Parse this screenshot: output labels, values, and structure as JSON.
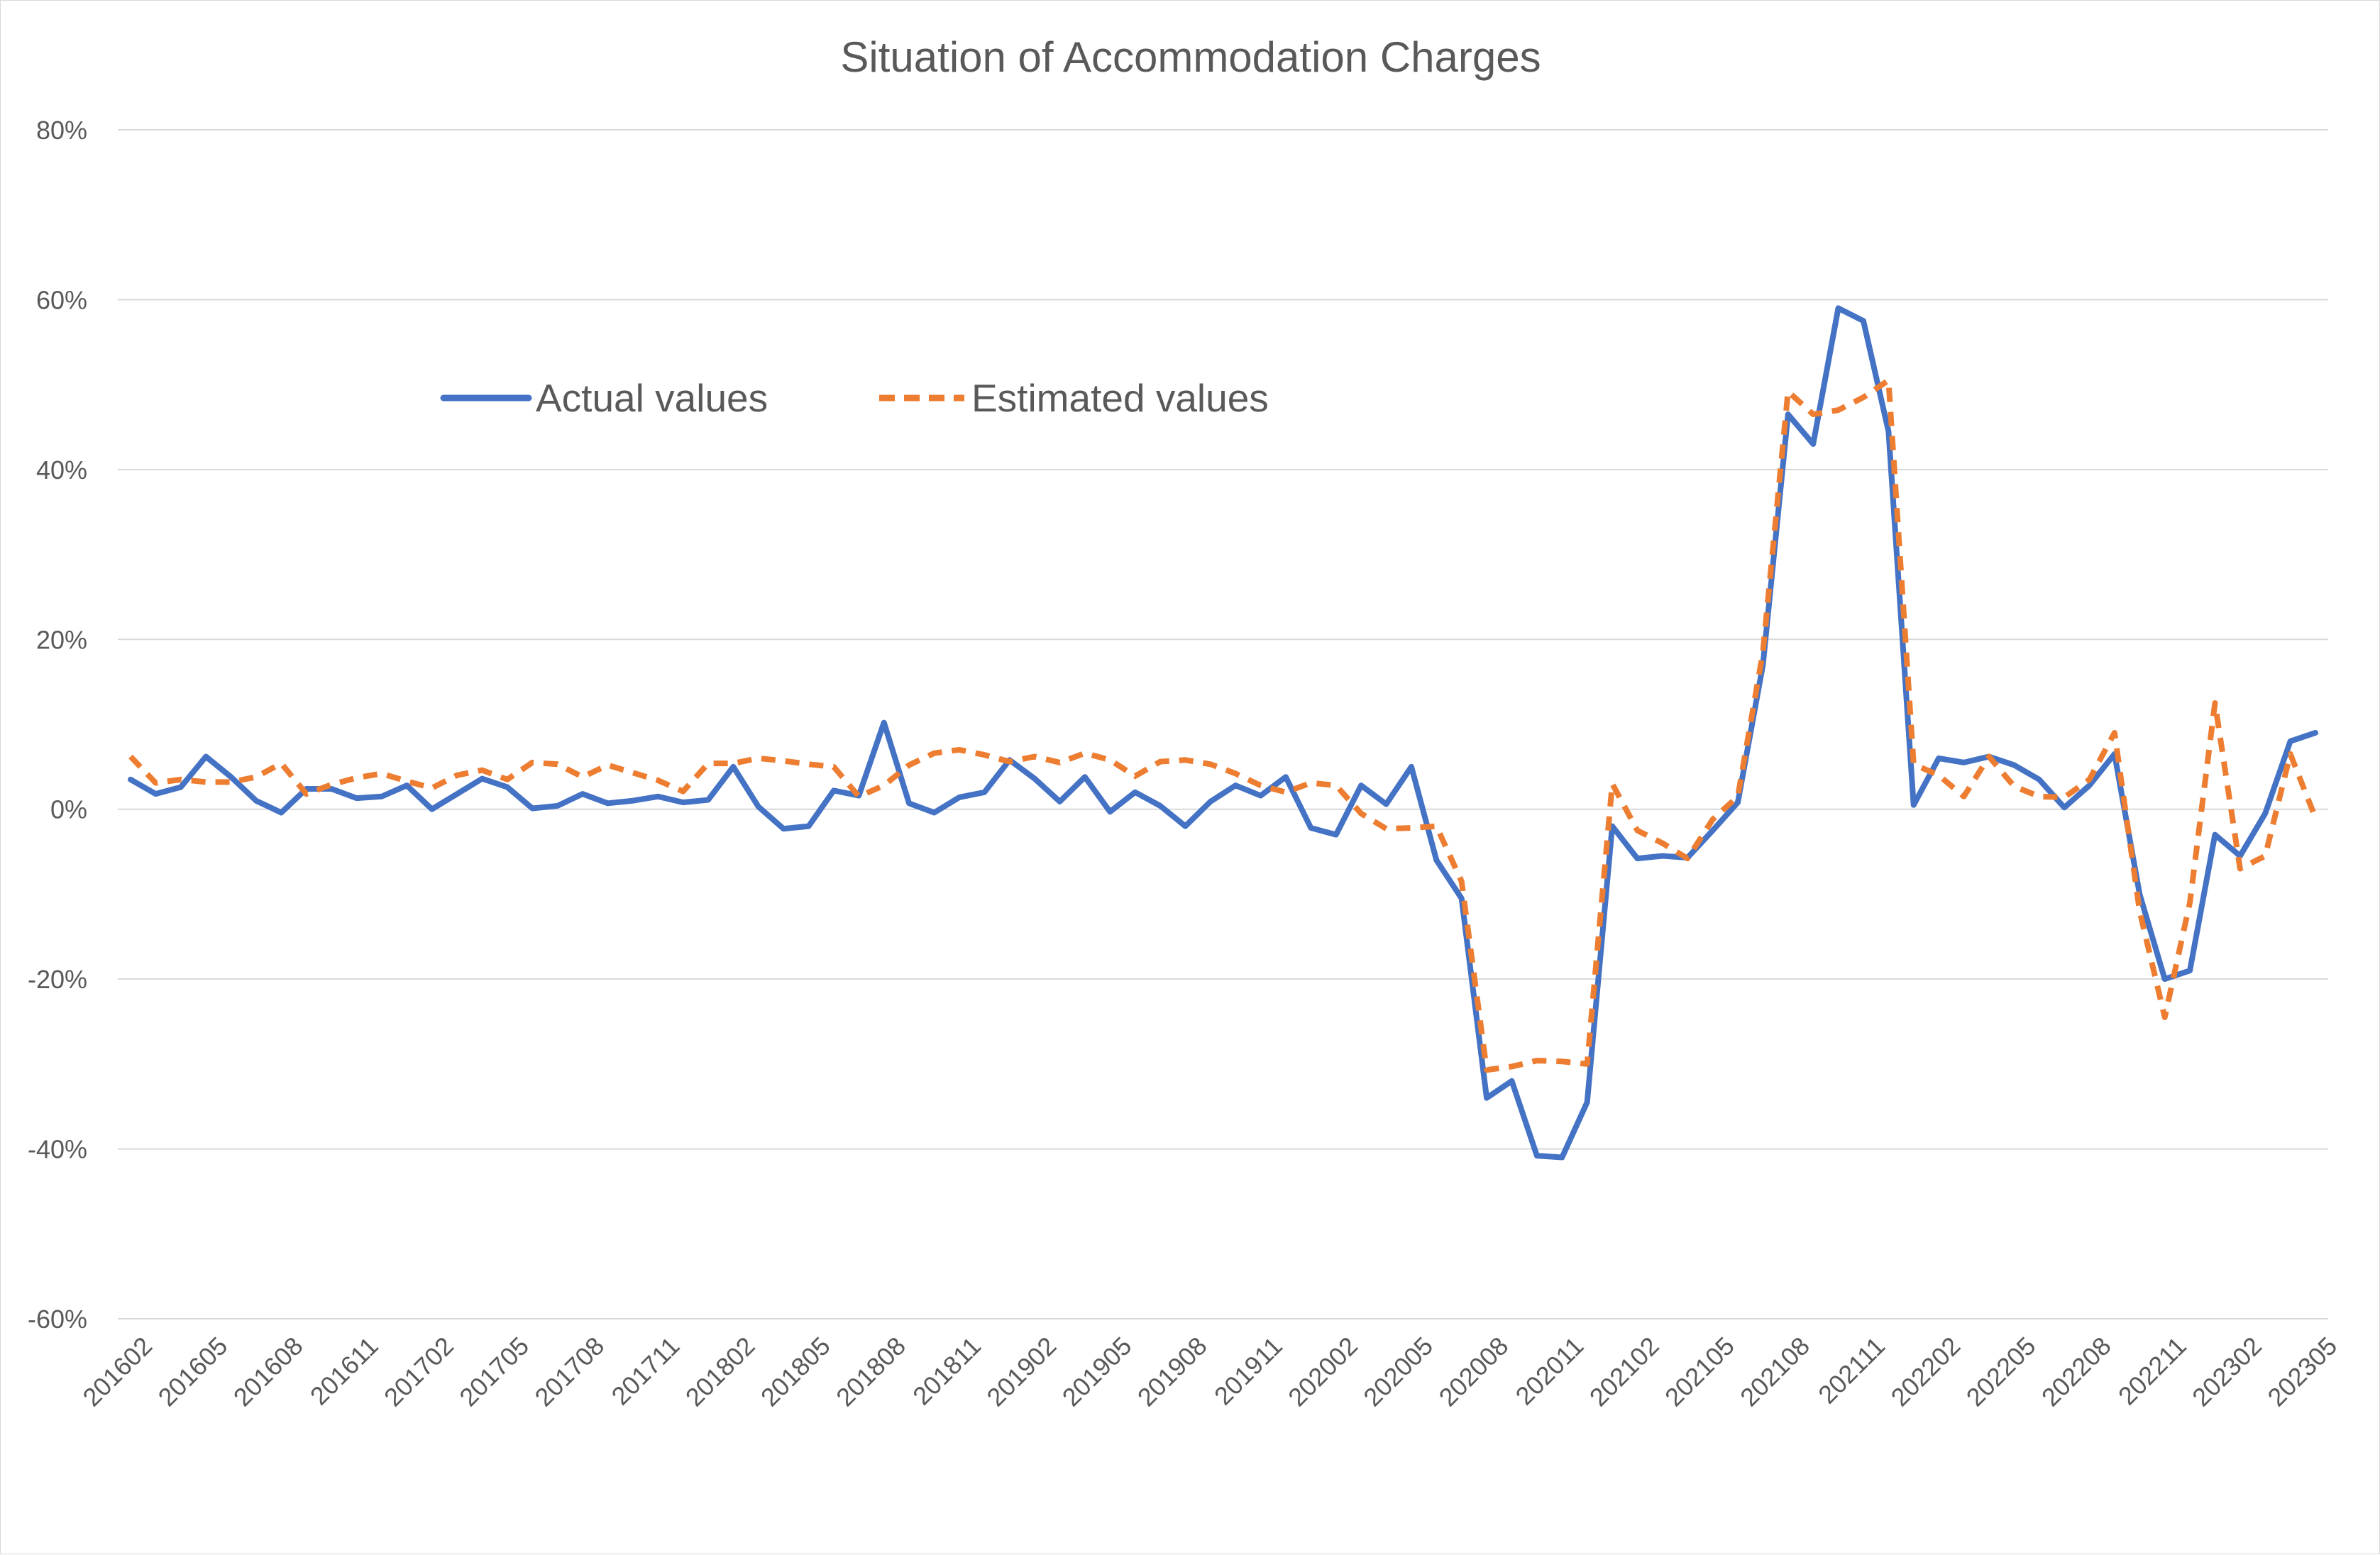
{
  "colors": {
    "actual": "#4472C4",
    "estimated": "#ED7D31",
    "grid": "#D9D9D9",
    "text": "#595959"
  },
  "chart_data": {
    "type": "line",
    "title": "Situation of Accommodation Charges",
    "xlabel": "",
    "ylabel": "",
    "ylim": [
      -60,
      80
    ],
    "y_unit": "%",
    "yticks": [
      -60,
      -40,
      -20,
      0,
      20,
      40,
      60,
      80
    ],
    "ytick_labels": [
      "-60%",
      "-40%",
      "-20%",
      "0%",
      "20%",
      "40%",
      "60%",
      "80%"
    ],
    "grid": true,
    "legend_position": "top-left",
    "x": [
      "201602",
      "201603",
      "201604",
      "201605",
      "201606",
      "201607",
      "201608",
      "201609",
      "201610",
      "201611",
      "201612",
      "201701",
      "201702",
      "201703",
      "201704",
      "201705",
      "201706",
      "201707",
      "201708",
      "201709",
      "201710",
      "201711",
      "201712",
      "201801",
      "201802",
      "201803",
      "201804",
      "201805",
      "201806",
      "201807",
      "201808",
      "201809",
      "201810",
      "201811",
      "201812",
      "201901",
      "201902",
      "201903",
      "201904",
      "201905",
      "201906",
      "201907",
      "201908",
      "201909",
      "201910",
      "201911",
      "201912",
      "202001",
      "202002",
      "202003",
      "202004",
      "202005",
      "202006",
      "202007",
      "202008",
      "202009",
      "202010",
      "202011",
      "202012",
      "202101",
      "202102",
      "202103",
      "202104",
      "202105",
      "202106",
      "202107",
      "202108",
      "202109",
      "202110",
      "202111",
      "202112",
      "202201",
      "202202",
      "202203",
      "202204",
      "202205",
      "202206",
      "202207",
      "202208",
      "202209",
      "202210",
      "202211",
      "202212",
      "202301",
      "202302",
      "202303",
      "202304",
      "202305"
    ],
    "x_tick_labels": [
      "201602",
      "201605",
      "201608",
      "201611",
      "201702",
      "201705",
      "201708",
      "201711",
      "201802",
      "201805",
      "201808",
      "201811",
      "201902",
      "201905",
      "201908",
      "201911",
      "202002",
      "202005",
      "202008",
      "202011",
      "202102",
      "202105",
      "202108",
      "202111",
      "202202",
      "202205",
      "202208",
      "202211",
      "202302",
      "202305"
    ],
    "series": [
      {
        "name": "Actual values",
        "style": "solid",
        "values": [
          3.5,
          1.8,
          2.6,
          6.2,
          3.8,
          1.0,
          -0.4,
          2.4,
          2.4,
          1.3,
          1.5,
          2.8,
          0.0,
          1.8,
          3.6,
          2.6,
          0.1,
          0.4,
          1.8,
          0.7,
          1.0,
          1.5,
          0.8,
          1.1,
          5.0,
          0.3,
          -2.3,
          -2.0,
          2.2,
          1.6,
          10.2,
          0.7,
          -0.4,
          1.4,
          2.0,
          5.8,
          3.6,
          0.9,
          3.8,
          -0.3,
          2.0,
          0.4,
          -2.0,
          0.9,
          2.8,
          1.6,
          3.8,
          -2.2,
          -3.0,
          2.8,
          0.6,
          5.0,
          -6.0,
          -10.5,
          -34.0,
          -32.0,
          -40.8,
          -41.0,
          -34.5,
          -2.0,
          -5.8,
          -5.5,
          -5.7,
          -2.5,
          0.8,
          17.0,
          46.5,
          43.0,
          59.0,
          57.5,
          44.5,
          0.5,
          6.0,
          5.5,
          6.2,
          5.2,
          3.5,
          0.2,
          2.8,
          6.5,
          -10.0,
          -20.0,
          -19.0,
          -3.0,
          -5.5,
          -0.5,
          8.0,
          9.0
        ]
      },
      {
        "name": "Estimated values",
        "style": "dashed",
        "values": [
          6.2,
          3.1,
          3.5,
          3.2,
          3.2,
          3.8,
          5.4,
          1.8,
          2.9,
          3.7,
          4.2,
          3.3,
          2.5,
          4.0,
          4.6,
          3.5,
          5.5,
          5.3,
          3.8,
          5.2,
          4.3,
          3.4,
          2.1,
          5.4,
          5.4,
          6.0,
          5.7,
          5.3,
          5.0,
          1.5,
          2.8,
          5.2,
          6.6,
          7.0,
          6.4,
          5.6,
          6.2,
          5.5,
          6.6,
          5.8,
          3.9,
          5.6,
          5.8,
          5.3,
          4.2,
          2.8,
          2.0,
          3.1,
          2.8,
          -0.5,
          -2.3,
          -2.2,
          -2.0,
          -8.5,
          -30.7,
          -30.3,
          -29.6,
          -29.7,
          -30.0,
          3.0,
          -2.5,
          -4.0,
          -5.8,
          -1.2,
          1.5,
          18.5,
          49.2,
          46.5,
          47.0,
          48.5,
          50.5,
          5.3,
          4.0,
          1.5,
          6.2,
          2.7,
          1.5,
          1.4,
          3.5,
          9.0,
          -12.0,
          -24.5,
          -11.0,
          12.5,
          -7.0,
          -5.5,
          6.5,
          -1.0
        ]
      }
    ]
  }
}
